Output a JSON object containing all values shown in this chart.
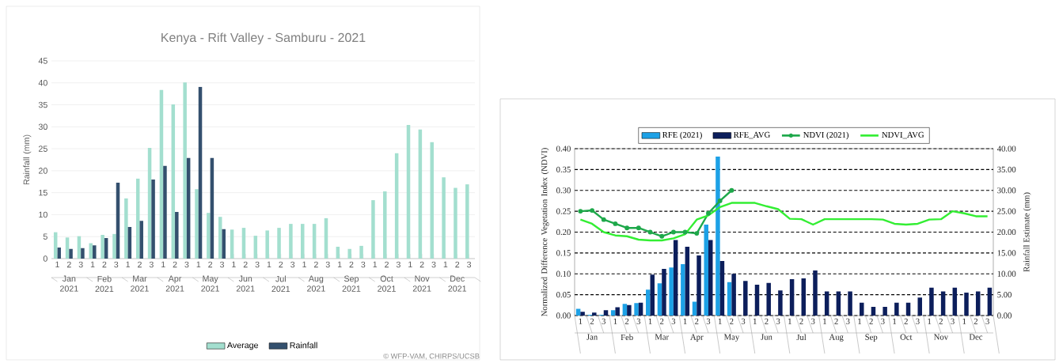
{
  "chart_data": [
    {
      "type": "bar",
      "title": "Kenya - Rift Valley - Samburu - 2021",
      "ylabel": "Rainfall (mm)",
      "categories": [
        "1",
        "2",
        "3",
        "1",
        "2",
        "3",
        "1",
        "2",
        "3",
        "1",
        "2",
        "3",
        "1",
        "2",
        "3",
        "1",
        "2",
        "3",
        "1",
        "2",
        "3",
        "1",
        "2",
        "3",
        "1",
        "2",
        "3",
        "1",
        "2",
        "3",
        "1",
        "2",
        "3",
        "1",
        "2",
        "3"
      ],
      "series": [
        {
          "name": "Average",
          "color": "#a3dfcf",
          "values": [
            6.0,
            4.8,
            5.1,
            3.5,
            5.4,
            5.6,
            13.7,
            18.2,
            25.2,
            38.4,
            35.1,
            40.1,
            15.8,
            10.4,
            9.5,
            6.6,
            7.0,
            5.2,
            6.4,
            7.0,
            7.9,
            7.9,
            7.9,
            9.2,
            2.7,
            2.2,
            2.9,
            13.3,
            15.3,
            24.0,
            30.4,
            29.4,
            26.5,
            18.5,
            16.1,
            16.9
          ]
        },
        {
          "name": "Rainfall",
          "color": "#34506e",
          "values": [
            2.5,
            2.2,
            2.4,
            3.0,
            4.7,
            17.3,
            7.2,
            8.6,
            18.0,
            21.1,
            10.6,
            22.9,
            39.1,
            22.9,
            6.7,
            null,
            null,
            null,
            null,
            null,
            null,
            null,
            null,
            null,
            null,
            null,
            null,
            null,
            null,
            null,
            null,
            null,
            null,
            null,
            null,
            null
          ]
        }
      ],
      "ylim": [
        0,
        45
      ],
      "yticks": [
        0,
        5,
        10,
        15,
        20,
        25,
        30,
        35,
        40,
        45
      ],
      "grid": "y",
      "legend": "bottom",
      "annotations": [
        "Jan 2021",
        "Feb 2021",
        "Mar 2021",
        "Apr 2021",
        "May 2021",
        "Jun 2021",
        "Jul 2021",
        "Aug 2021",
        "Sep 2021",
        "Oct 2021",
        "Nov 2021",
        "Dec 2021",
        "© WFP-VAM, CHIRPS/UCSB"
      ]
    },
    {
      "type": "bar",
      "ylabel": "Normalized Difference Vegetation Index (NDVI)",
      "y2label": "Rainfall Estimate (mm)",
      "categories": [
        "1",
        "2",
        "3",
        "1",
        "2",
        "3",
        "1",
        "2",
        "3",
        "1",
        "2",
        "3",
        "1",
        "2",
        "3",
        "1",
        "2",
        "3",
        "1",
        "2",
        "3",
        "1",
        "2",
        "3",
        "1",
        "2",
        "3",
        "1",
        "2",
        "3",
        "1",
        "2",
        "3",
        "1",
        "2",
        "3"
      ],
      "series": [
        {
          "name": "RFE (2021)",
          "color": "#1da1e6",
          "axis": "y2",
          "values": [
            1.6,
            0.2,
            0.2,
            1.3,
            2.8,
            3.0,
            6.2,
            7.7,
            11.5,
            12.3,
            3.3,
            21.8,
            38.1,
            8.0,
            null,
            null,
            null,
            null,
            null,
            null,
            null,
            null,
            null,
            null,
            null,
            null,
            null,
            null,
            null,
            null,
            null,
            null,
            null,
            null,
            null,
            null
          ]
        },
        {
          "name": "RFE_AVG",
          "color": "#0c1e5b",
          "axis": "y2",
          "values": [
            0.9,
            0.7,
            1.3,
            2.0,
            2.5,
            3.1,
            9.8,
            11.2,
            18.1,
            16.5,
            14.4,
            18.1,
            13.1,
            10.0,
            8.3,
            7.4,
            7.8,
            6.0,
            8.7,
            8.9,
            10.8,
            5.8,
            5.8,
            5.8,
            3.1,
            2.1,
            2.1,
            3.1,
            3.1,
            4.3,
            6.7,
            5.8,
            6.7,
            5.5,
            5.8,
            6.7
          ]
        },
        {
          "name": "NDVI (2021)",
          "type": "line",
          "color": "#1ea84a",
          "marker": "circle",
          "values": [
            0.25,
            0.252,
            0.23,
            0.22,
            0.21,
            0.21,
            0.2,
            0.19,
            0.2,
            0.2,
            0.197,
            0.245,
            0.275,
            0.3,
            null,
            null,
            null,
            null,
            null,
            null,
            null,
            null,
            null,
            null,
            null,
            null,
            null,
            null,
            null,
            null,
            null,
            null,
            null,
            null,
            null,
            null
          ]
        },
        {
          "name": "NDVI_AVG",
          "type": "line",
          "color": "#33ee33",
          "values": [
            0.23,
            0.22,
            0.2,
            0.192,
            0.19,
            0.182,
            0.18,
            0.18,
            0.185,
            0.195,
            0.23,
            0.24,
            0.26,
            0.27,
            0.27,
            0.27,
            0.262,
            0.255,
            0.232,
            0.231,
            0.218,
            0.231,
            0.231,
            0.231,
            0.231,
            0.231,
            0.23,
            0.22,
            0.218,
            0.22,
            0.23,
            0.231,
            0.25,
            0.245,
            0.238,
            0.238
          ]
        }
      ],
      "ylim": [
        0,
        0.4
      ],
      "yticks": [
        {
          "value": 0,
          "label": "0.00"
        },
        {
          "value": 0.05,
          "label": "0.05"
        },
        {
          "value": 0.1,
          "label": "0.10"
        },
        {
          "value": 0.15,
          "label": "0.15"
        },
        {
          "value": 0.2,
          "label": "0.20"
        },
        {
          "value": 0.25,
          "label": "0.25"
        },
        {
          "value": 0.3,
          "label": "0.30"
        },
        {
          "value": 0.35,
          "label": "0.35"
        },
        {
          "value": 0.4,
          "label": "0.40"
        }
      ],
      "y2lim": [
        0,
        40
      ],
      "y2ticks": [
        {
          "value": 0,
          "label": "0.00"
        },
        {
          "value": 5,
          "label": "5.00"
        },
        {
          "value": 10,
          "label": "10.00"
        },
        {
          "value": 15,
          "label": "15.00"
        },
        {
          "value": 20,
          "label": "20.00"
        },
        {
          "value": 25,
          "label": "25.00"
        },
        {
          "value": 30,
          "label": "30.00"
        },
        {
          "value": 35,
          "label": "35.00"
        },
        {
          "value": 40,
          "label": "40.00"
        }
      ],
      "grid": "y",
      "legend": "top",
      "annotations": [
        "Jan",
        "Feb",
        "Mar",
        "Apr",
        "May",
        "Jun",
        "Jul",
        "Aug",
        "Sep",
        "Oct",
        "Nov",
        "Dec"
      ]
    }
  ]
}
